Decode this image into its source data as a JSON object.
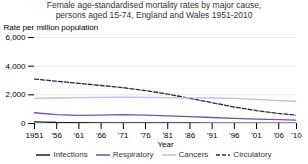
{
  "chart_data": {
    "type": "line",
    "title": "Female age-standardised mortality rates by major cause,\npersons aged 15-74, England and Wales 1951-2010",
    "xlabel": "Year",
    "ylabel": "Rate per million population",
    "x": [
      1951,
      1956,
      1961,
      1966,
      1971,
      1976,
      1981,
      1986,
      1991,
      1996,
      2001,
      2006,
      2010
    ],
    "series": [
      {
        "name": "Circulatory",
        "color": "#2a2a3e",
        "line_style": "dashed",
        "values": [
          3100,
          2950,
          2800,
          2650,
          2500,
          2300,
          2050,
          1750,
          1450,
          1150,
          900,
          700,
          580
        ]
      },
      {
        "name": "Cancers",
        "color": "#c8b8e8",
        "line_style": "solid",
        "values": [
          1750,
          1780,
          1800,
          1820,
          1830,
          1820,
          1800,
          1790,
          1780,
          1750,
          1680,
          1600,
          1550
        ]
      },
      {
        "name": "Respiratory",
        "color": "#7b4fa6",
        "line_style": "solid",
        "values": [
          750,
          620,
          560,
          580,
          620,
          580,
          530,
          480,
          420,
          360,
          310,
          270,
          240
        ]
      },
      {
        "name": "Infections",
        "color": "#1a1a2e",
        "line_style": "solid",
        "values": [
          120,
          70,
          55,
          48,
          44,
          42,
          38,
          35,
          30,
          26,
          22,
          20,
          18
        ]
      }
    ],
    "xlim": [
      1951,
      2010
    ],
    "xticks": [
      1951,
      {
        "value": 1956,
        "label": "'56"
      },
      {
        "value": 1961,
        "label": "'61"
      },
      {
        "value": 1966,
        "label": "'66"
      },
      {
        "value": 1971,
        "label": "'71"
      },
      {
        "value": 1976,
        "label": "'76"
      },
      {
        "value": 1981,
        "label": "'81"
      },
      {
        "value": 1986,
        "label": "'86"
      },
      {
        "value": 1991,
        "label": "'91"
      },
      {
        "value": 1996,
        "label": "'96"
      },
      {
        "value": 2001,
        "label": "'01"
      },
      {
        "value": 2006,
        "label": "'06"
      },
      {
        "value": 2010,
        "label": "'10"
      }
    ],
    "ylim": [
      0,
      6000
    ],
    "yticks": [
      0,
      {
        "value": 2000,
        "label": "2,000"
      },
      {
        "value": 4000,
        "label": "4,000"
      },
      {
        "value": 6000,
        "label": "6,000"
      }
    ],
    "grid": true,
    "legend": "bottom"
  }
}
